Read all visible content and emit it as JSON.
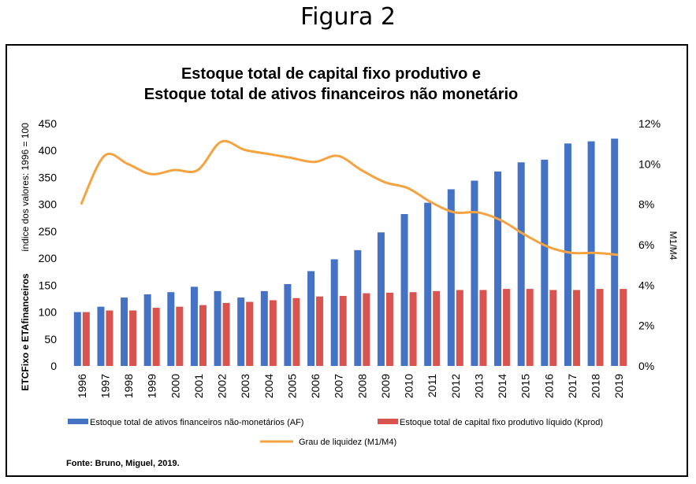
{
  "figure_heading": "Figura 2",
  "source": "Fonte: Bruno, Miguel, 2019.",
  "colors": {
    "af": "#4472c4",
    "kprod": "#d9534f",
    "liquidez": "#f4a340"
  },
  "chart_data": {
    "type": "bar",
    "title_line1": "Estoque total de capital fixo produtivo e",
    "title_line2": "Estoque total de ativos financeiros não monetário",
    "categories": [
      "1996",
      "1997",
      "1998",
      "1999",
      "2000",
      "2001",
      "2002",
      "2003",
      "2004",
      "2005",
      "2006",
      "2007",
      "2008",
      "2009",
      "2010",
      "2011",
      "2012",
      "2013",
      "2014",
      "2015",
      "2016",
      "2017",
      "2018",
      "2019"
    ],
    "ylabel_left_top": "índice dos valores: 1996 = 100",
    "ylabel_left_bottom": "ETCFixo  e ETAfinanceiros",
    "ylabel_right": "M1/M4",
    "ylim_left": [
      0,
      450
    ],
    "yticks_left": [
      "0",
      "50",
      "100",
      "150",
      "200",
      "250",
      "300",
      "350",
      "400",
      "450"
    ],
    "ylim_right": [
      0,
      0.12
    ],
    "yticks_right": [
      "0%",
      "2%",
      "4%",
      "6%",
      "8%",
      "10%",
      "12%"
    ],
    "series": [
      {
        "name": "Estoque total de ativos financeiros não-monetários (AF)",
        "type": "bar",
        "values": [
          100,
          110,
          127,
          133,
          137,
          147,
          139,
          127,
          139,
          152,
          176,
          198,
          215,
          248,
          282,
          303,
          328,
          344,
          361,
          378,
          383,
          413,
          417,
          422
        ]
      },
      {
        "name": "Estoque total de capital fixo produtivo líquido (Kprod)",
        "type": "bar",
        "values": [
          100,
          103,
          103,
          108,
          110,
          113,
          117,
          119,
          122,
          126,
          129,
          130,
          135,
          136,
          137,
          139,
          141,
          141,
          143,
          143,
          141,
          141,
          143,
          143
        ]
      },
      {
        "name": "Grau de liquidez (M1/M4)",
        "type": "line",
        "axis": "right",
        "values": [
          0.08,
          0.104,
          0.1,
          0.095,
          0.097,
          0.097,
          0.111,
          0.107,
          0.105,
          0.103,
          0.101,
          0.104,
          0.097,
          0.091,
          0.088,
          0.081,
          0.076,
          0.076,
          0.072,
          0.065,
          0.059,
          0.056,
          0.056,
          0.055
        ]
      }
    ]
  }
}
